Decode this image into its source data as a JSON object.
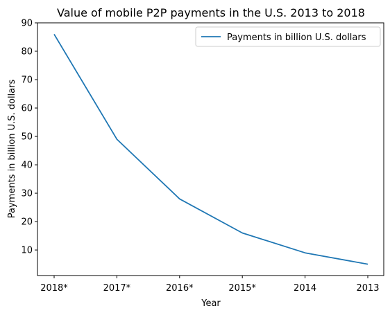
{
  "chart_data": {
    "type": "line",
    "title": "Value of mobile P2P payments in the U.S. 2013 to 2018",
    "xlabel": "Year",
    "ylabel": "Payments in billion U.S. dollars",
    "categories": [
      "2018*",
      "2017*",
      "2016*",
      "2015*",
      "2014",
      "2013"
    ],
    "series": [
      {
        "name": "Payments in billion U.S. dollars",
        "values": [
          86,
          49,
          28,
          16,
          9,
          5
        ],
        "color": "#1f77b4"
      }
    ],
    "ylim": [
      1,
      90
    ],
    "yticks": [
      10,
      20,
      30,
      40,
      50,
      60,
      70,
      80,
      90
    ],
    "grid": false,
    "legend": "top-right"
  }
}
